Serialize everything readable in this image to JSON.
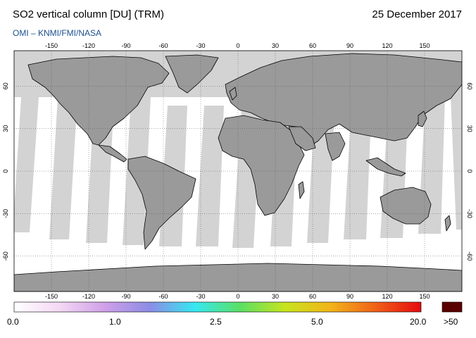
{
  "header": {
    "title": "SO2 vertical column [DU] (TRM)",
    "date": "25 December 2017",
    "credit": "OMI  –  KNMI/FMI/NASA"
  },
  "map": {
    "longitude_ticks": [
      "-150",
      "-120",
      "-90",
      "-60",
      "-30",
      "0",
      "30",
      "60",
      "90",
      "120",
      "150"
    ],
    "latitude_ticks": [
      "60",
      "30",
      "0",
      "-30",
      "-60"
    ],
    "colors": {
      "land": "#9a9a9a",
      "ocean": "#ffffff",
      "no_data": "#d3d3d3",
      "coast": "#000000"
    }
  },
  "color_scale": {
    "labels": [
      "0.0",
      "1.0",
      "2.5",
      "5.0",
      "20.0"
    ],
    "overflow_label": ">50",
    "overflow_color": "#5a0000",
    "gradient": [
      "#ffffff",
      "#f4d8f4",
      "#d0a0e8",
      "#8c8ce6",
      "#36e8f2",
      "#5ae064",
      "#c8e41e",
      "#f2b41a",
      "#f06018",
      "#e60a10"
    ]
  }
}
